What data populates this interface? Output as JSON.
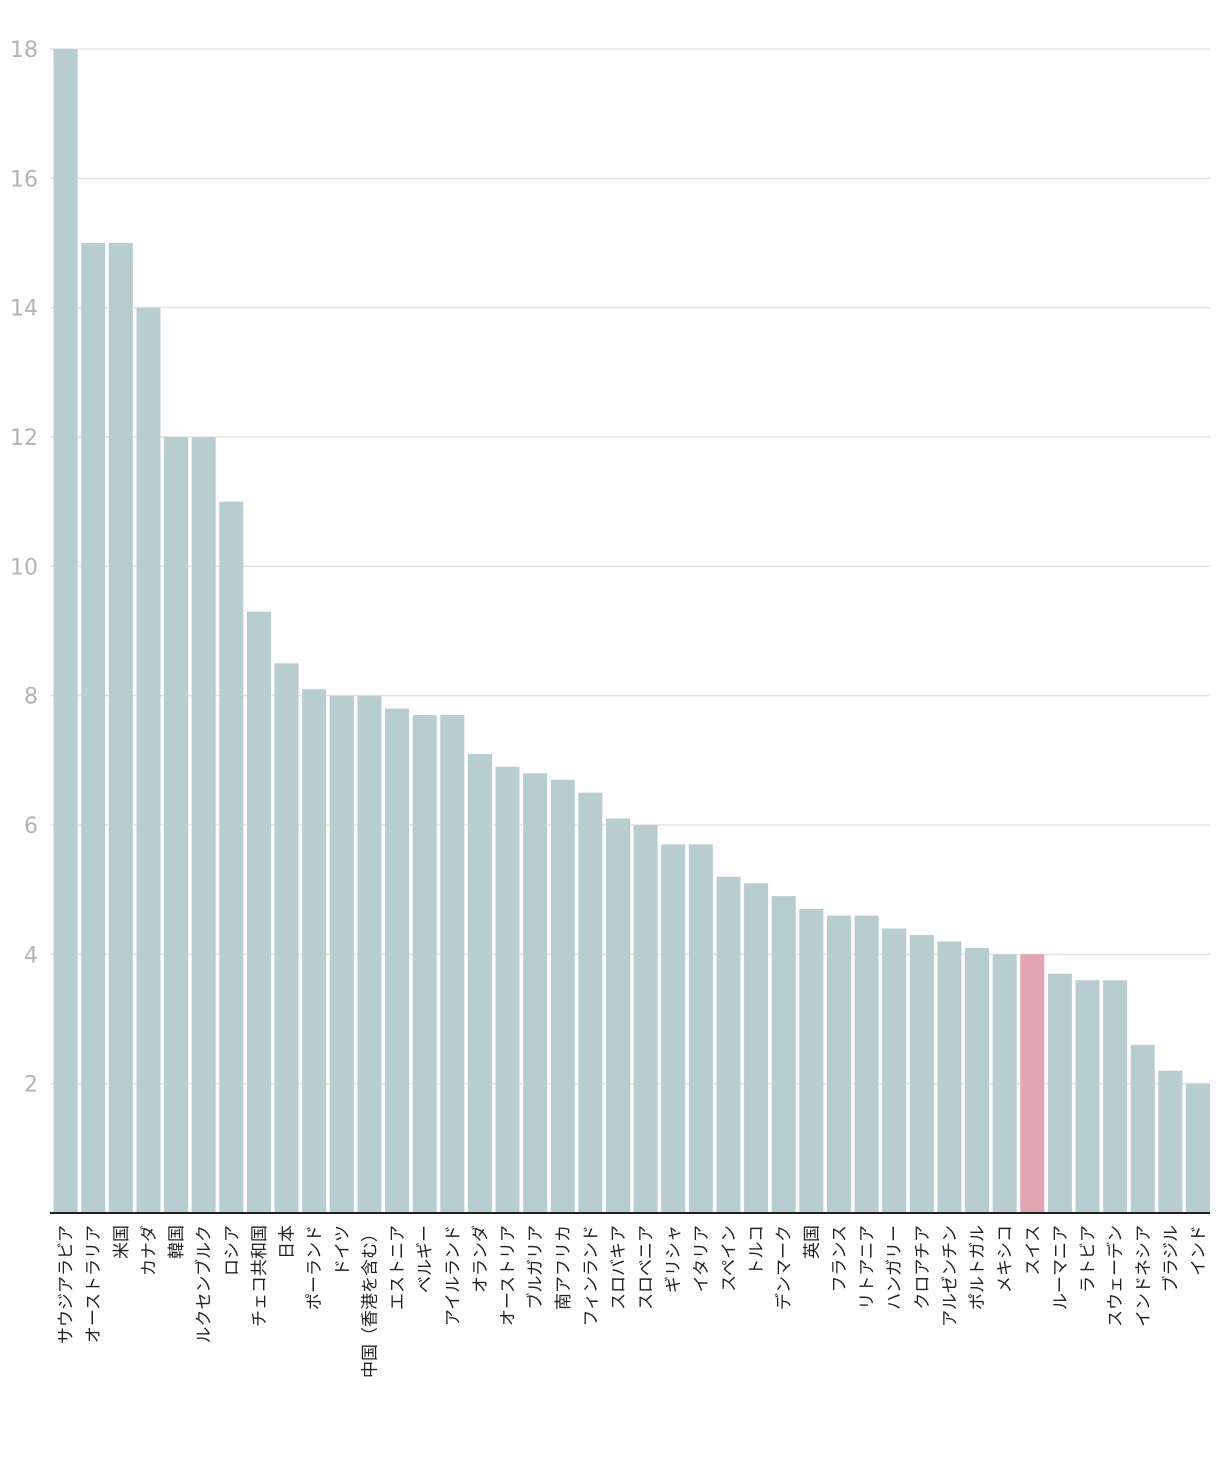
{
  "chart_data": {
    "type": "bar",
    "title": "",
    "xlabel": "",
    "ylabel": "",
    "ylim": [
      0,
      18
    ],
    "yticks": [
      2,
      4,
      6,
      8,
      10,
      12,
      14,
      16,
      18
    ],
    "grid": true,
    "default_color": "#b7cdd0",
    "highlight_color": "#e2a6b2",
    "highlight_category": "スイス",
    "categories": [
      "サウジアラビア",
      "オーストラリア",
      "米国",
      "カナダ",
      "韓国",
      "ルクセンブルク",
      "ロシア",
      "チェコ共和国",
      "日本",
      "ポーランド",
      "ドイツ",
      "中国（香港を含む）",
      "エストニア",
      "ベルギー",
      "アイルランド",
      "オランダ",
      "オーストリア",
      "ブルガリア",
      "南アフリカ",
      "フィンランド",
      "スロバキア",
      "スロベニア",
      "ギリシャ",
      "イタリア",
      "スペイン",
      "トルコ",
      "デンマーク",
      "英国",
      "フランス",
      "リトアニア",
      "ハンガリー",
      "クロアチア",
      "アルゼンチン",
      "ポルトガル",
      "メキシコ",
      "スイス",
      "ルーマニア",
      "ラトビア",
      "スウェーデン",
      "インドネシア",
      "ブラジル",
      "インド"
    ],
    "values": [
      18,
      15,
      15,
      14,
      12,
      12,
      11,
      9.3,
      8.5,
      8.1,
      8,
      8,
      7.8,
      7.7,
      7.7,
      7.1,
      6.9,
      6.8,
      6.7,
      6.5,
      6.1,
      6,
      5.7,
      5.7,
      5.2,
      5.1,
      4.9,
      4.7,
      4.6,
      4.6,
      4.4,
      4.3,
      4.2,
      4.1,
      4,
      4,
      3.7,
      3.6,
      3.6,
      2.6,
      2.2,
      2
    ]
  }
}
